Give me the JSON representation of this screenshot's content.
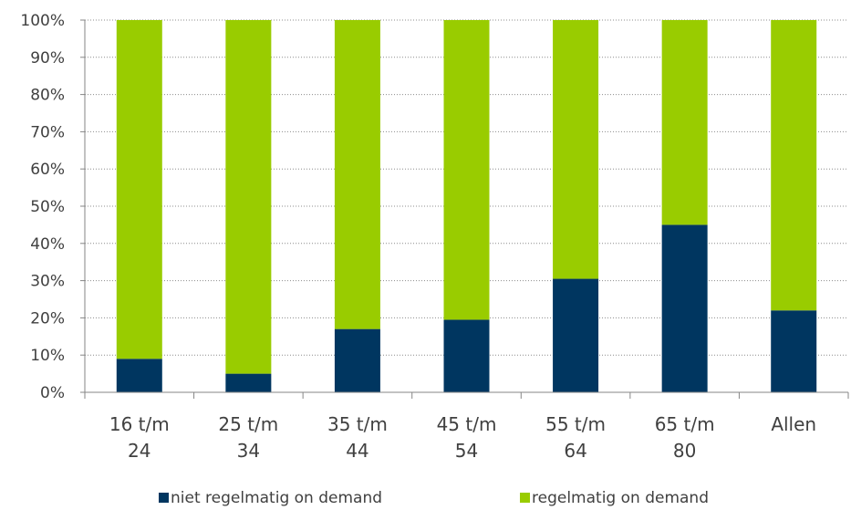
{
  "chart_data": {
    "type": "bar",
    "stacked": true,
    "normalized": true,
    "categories": [
      [
        "16 t/m",
        "24"
      ],
      [
        "25 t/m",
        "34"
      ],
      [
        "35 t/m",
        "44"
      ],
      [
        "45 t/m",
        "54"
      ],
      [
        "55 t/m",
        "64"
      ],
      [
        "65 t/m",
        "80"
      ],
      [
        "Allen"
      ]
    ],
    "series": [
      {
        "name": "niet regelmatig on demand",
        "color": "#003660",
        "values": [
          9,
          5,
          17,
          19.5,
          30.5,
          45,
          22
        ]
      },
      {
        "name": "regelmatig on demand",
        "color": "#99CC00",
        "values": [
          91,
          95,
          83,
          80.5,
          69.5,
          55,
          78
        ]
      }
    ],
    "ylim": [
      0,
      100
    ],
    "yticks": [
      "0%",
      "10%",
      "20%",
      "30%",
      "40%",
      "50%",
      "60%",
      "70%",
      "80%",
      "90%",
      "100%"
    ],
    "grid": true,
    "legend_position": "bottom"
  }
}
